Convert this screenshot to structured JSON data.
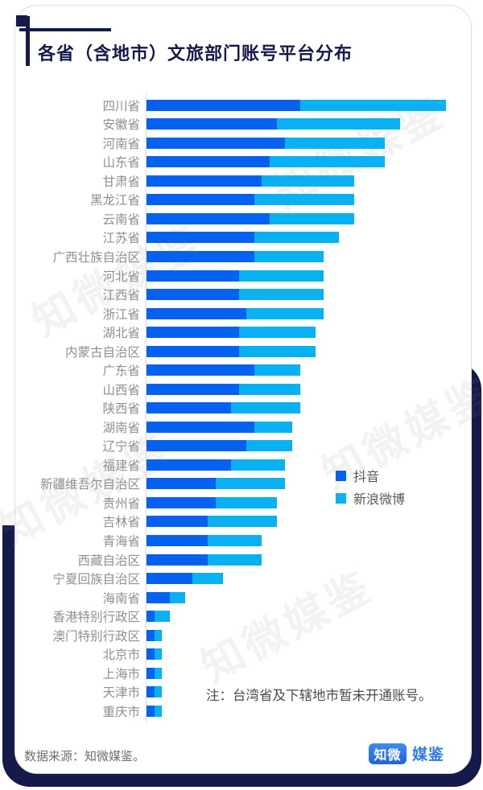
{
  "title": "各省（含地市）文旅部门账号平台分布",
  "note": "注：台湾省及下辖地市暂未开通账号。",
  "footer": {
    "source": "数据来源：知微媒鉴。",
    "logo_primary": "知微",
    "logo_secondary": "媒鉴"
  },
  "watermark_text": "知微媒鉴",
  "colors": {
    "navy": "#151a4b",
    "douyin_blue": "#0562f0",
    "weibo_blue": "#09b0f2",
    "label_gray": "#8f8f8f",
    "card_border": "#dcdcdc"
  },
  "chart_data": {
    "type": "bar",
    "orientation": "horizontal",
    "stacked": true,
    "title": "各省（含地市）文旅部门账号平台分布",
    "xlabel": "",
    "ylabel": "",
    "xlim": [
      0,
      40
    ],
    "grid": false,
    "legend_position": "middle-right",
    "categories": [
      "四川省",
      "安徽省",
      "河南省",
      "山东省",
      "甘肃省",
      "黑龙江省",
      "云南省",
      "江苏省",
      "广西壮族自治区",
      "河北省",
      "江西省",
      "浙江省",
      "湖北省",
      "内蒙古自治区",
      "广东省",
      "山西省",
      "陕西省",
      "湖南省",
      "辽宁省",
      "福建省",
      "新疆维吾尔自治区",
      "贵州省",
      "吉林省",
      "青海省",
      "西藏自治区",
      "宁夏回族自治区",
      "海南省",
      "香港特别行政区",
      "澳门特别行政区",
      "北京市",
      "上海市",
      "天津市",
      "重庆市"
    ],
    "series": [
      {
        "id": "douyin",
        "name": "抖音",
        "color": "#0562f0",
        "values": [
          20,
          17,
          18,
          16,
          15,
          14,
          16,
          14,
          14,
          12,
          12,
          13,
          12,
          12,
          14,
          12,
          11,
          14,
          13,
          11,
          9,
          9,
          8,
          8,
          8,
          6,
          3,
          1,
          1,
          1,
          1,
          1,
          1
        ]
      },
      {
        "id": "weibo",
        "name": "新浪微博",
        "color": "#09b0f2",
        "values": [
          19,
          16,
          13,
          15,
          12,
          13,
          11,
          11,
          9,
          11,
          11,
          10,
          10,
          10,
          6,
          8,
          9,
          5,
          6,
          7,
          9,
          8,
          9,
          7,
          7,
          4,
          2,
          2,
          1,
          1,
          1,
          1,
          1
        ]
      }
    ]
  }
}
